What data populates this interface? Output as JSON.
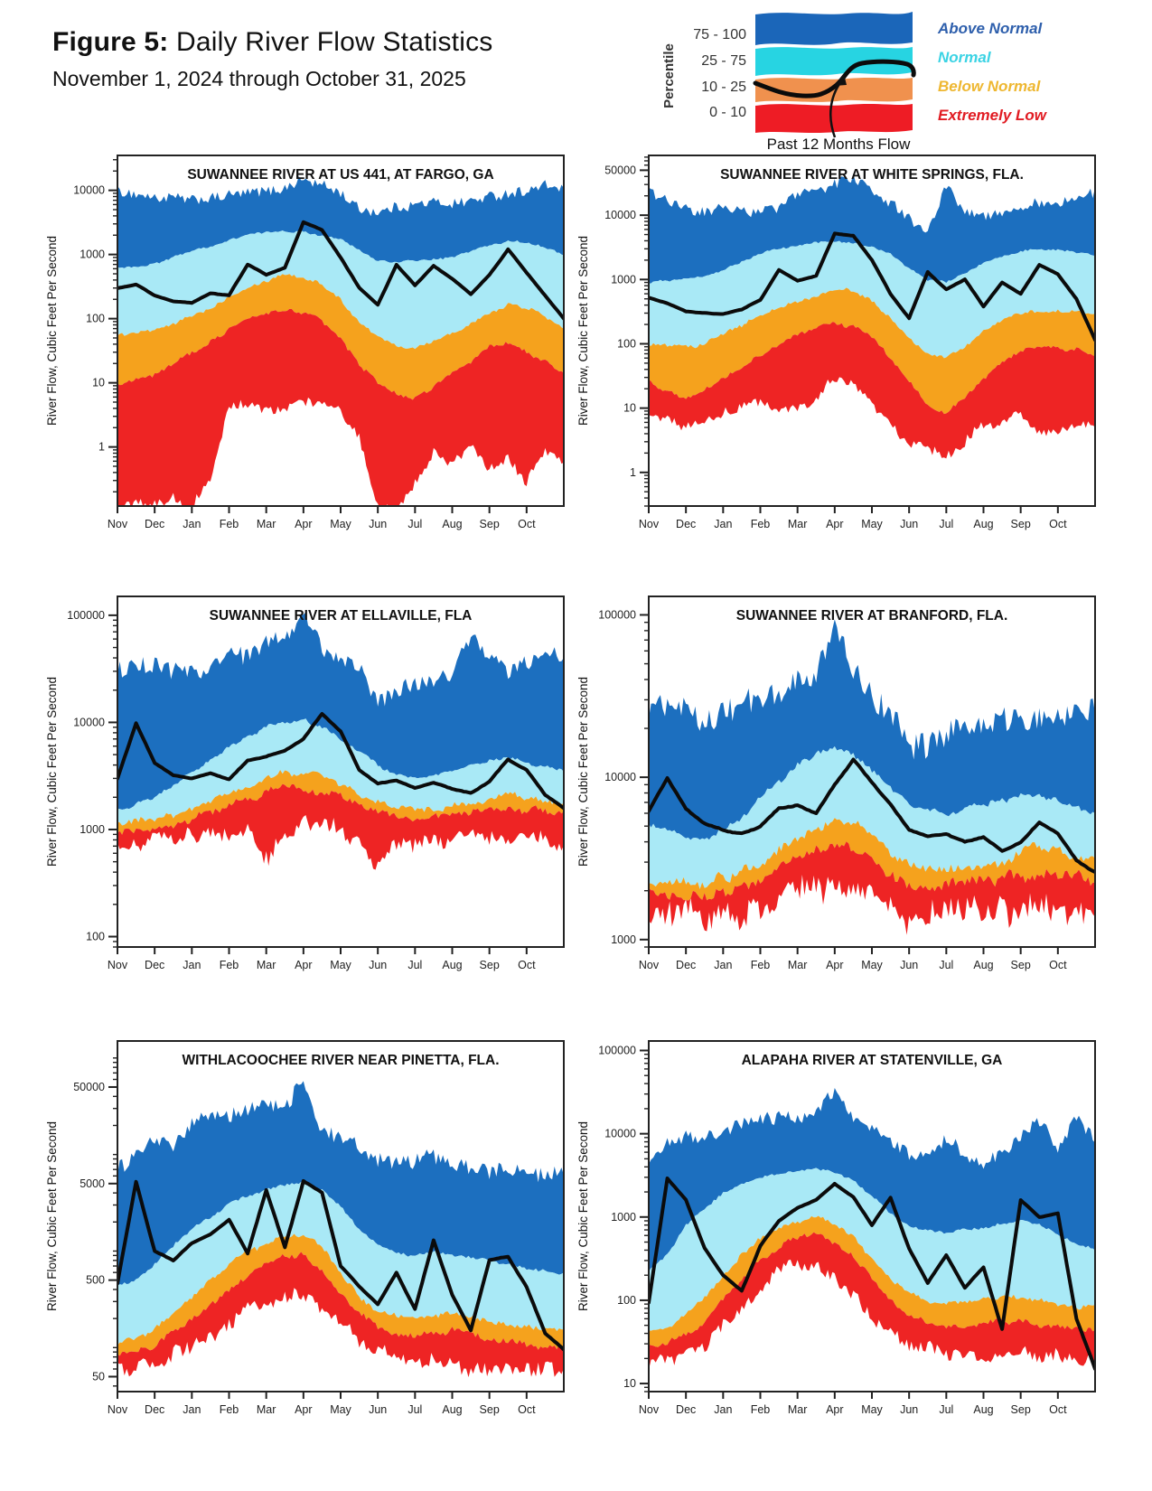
{
  "figure": {
    "title_bold": "Figure 5:",
    "title_rest": " Daily River Flow Statistics",
    "subtitle": "November 1, 2024 through October 31, 2025"
  },
  "legend": {
    "percentile_axis_label": "Percentile",
    "flow_caption": "Past 12 Months Flow",
    "rows": [
      {
        "range": "75 - 100",
        "band_color": "#1b66b9",
        "label": "Above Normal",
        "label_color": "#2e5fac"
      },
      {
        "range": "25 - 75",
        "band_color": "#27d4e2",
        "label": "Normal",
        "label_color": "#3bd3e4"
      },
      {
        "range": "10 - 25",
        "band_color": "#f0914e",
        "label": "Below Normal",
        "label_color": "#eeb731"
      },
      {
        "range": "0 - 10",
        "band_color": "#ee1c25",
        "label": "Extremely Low",
        "label_color": "#e11b22"
      }
    ]
  },
  "months": [
    "Nov",
    "Dec",
    "Jan",
    "Feb",
    "Mar",
    "Apr",
    "May",
    "Jun",
    "Jul",
    "Aug",
    "Sep",
    "Oct"
  ],
  "colors": {
    "above": "#1c6fbf",
    "normal": "#a9e9f6",
    "below": "#f5a21d",
    "extreme": "#ee2424",
    "line": "#0b0b0b"
  },
  "chart_data": [
    {
      "type": "area",
      "id": "fargo",
      "title": "SUWANNEE RIVER AT US 441, AT FARGO, GA",
      "ylabel": "River Flow, Cubic Feet Per Second",
      "xlabel": "",
      "x_samples": "25 points, semi-monthly, Nov 1 2024 - Oct 31 2025",
      "ylim": [
        0.12,
        35000
      ],
      "yticks": [
        1,
        10,
        100,
        1000,
        10000
      ],
      "bands": {
        "max": [
          10000,
          8500,
          7500,
          8000,
          7000,
          7500,
          8500,
          9000,
          9500,
          11000,
          15000,
          12000,
          9000,
          5000,
          4500,
          5500,
          6000,
          6500,
          6000,
          7000,
          8000,
          9000,
          9500,
          12000,
          11000
        ],
        "p75": [
          600,
          650,
          700,
          900,
          1100,
          1300,
          1700,
          2000,
          2200,
          2300,
          2200,
          2000,
          1700,
          1200,
          800,
          750,
          800,
          850,
          900,
          1100,
          1400,
          1600,
          1500,
          1300,
          1000
        ],
        "p25": [
          55,
          60,
          65,
          80,
          110,
          150,
          220,
          300,
          400,
          480,
          450,
          350,
          200,
          90,
          50,
          38,
          36,
          45,
          60,
          80,
          120,
          170,
          150,
          110,
          70
        ],
        "p10": [
          10,
          12,
          14,
          20,
          30,
          45,
          70,
          100,
          130,
          140,
          120,
          90,
          50,
          20,
          10,
          7,
          6,
          9,
          14,
          20,
          35,
          45,
          30,
          22,
          15
        ],
        "min": [
          0.12,
          0.12,
          0.12,
          0.15,
          0.12,
          0.3,
          4,
          4.5,
          3.5,
          4,
          5,
          5,
          4,
          1.5,
          0.12,
          0.12,
          0.3,
          0.8,
          0.5,
          1,
          0.4,
          0.6,
          0.3,
          1,
          0.5
        ]
      },
      "line_past_12_months": [
        300,
        340,
        230,
        185,
        175,
        250,
        230,
        700,
        480,
        620,
        3200,
        2400,
        900,
        300,
        165,
        690,
        330,
        660,
        420,
        240,
        480,
        1200,
        520,
        230,
        100
      ]
    },
    {
      "type": "area",
      "id": "white-springs",
      "title": "SUWANNEE RIVER AT WHITE SPRINGS, FLA.",
      "ylabel": "River Flow, Cubic Feet Per Second",
      "xlabel": "",
      "x_samples": "25 points, semi-monthly, Nov 1 2024 - Oct 31 2025",
      "ylim": [
        0.3,
        85000
      ],
      "yticks": [
        1,
        10,
        100,
        1000,
        10000,
        50000
      ],
      "bands": {
        "max": [
          22000,
          17000,
          13000,
          11000,
          14000,
          12000,
          11000,
          13000,
          20000,
          25000,
          30000,
          40000,
          25000,
          15000,
          9000,
          6000,
          28000,
          12000,
          10000,
          11000,
          13000,
          16000,
          15000,
          18000,
          22000
        ],
        "p75": [
          900,
          950,
          1000,
          1100,
          1400,
          1800,
          2500,
          3000,
          3300,
          3800,
          4000,
          3800,
          3200,
          2500,
          1500,
          1000,
          900,
          1200,
          1800,
          2300,
          2800,
          3000,
          2800,
          2600,
          2400
        ],
        "p25": [
          100,
          95,
          90,
          100,
          140,
          200,
          280,
          350,
          450,
          550,
          700,
          650,
          450,
          250,
          120,
          70,
          60,
          90,
          150,
          220,
          300,
          330,
          330,
          320,
          300
        ],
        "p10": [
          25,
          18,
          14,
          18,
          30,
          45,
          70,
          100,
          130,
          170,
          210,
          190,
          130,
          60,
          25,
          12,
          8,
          15,
          30,
          50,
          80,
          90,
          85,
          80,
          60
        ],
        "min": [
          8,
          6,
          5,
          6,
          9,
          11,
          12,
          11,
          10,
          15,
          30,
          25,
          12,
          6,
          3,
          2.2,
          1.8,
          3,
          5,
          6,
          9,
          4,
          5,
          6,
          5
        ]
      },
      "line_past_12_months": [
        520,
        430,
        320,
        300,
        290,
        340,
        480,
        1400,
        950,
        1150,
        5200,
        4800,
        2000,
        600,
        250,
        1300,
        700,
        1000,
        380,
        900,
        600,
        1700,
        1200,
        500,
        115
      ]
    },
    {
      "type": "area",
      "id": "ellaville",
      "title": "SUWANNEE RIVER AT ELLAVILLE, FLA",
      "ylabel": "River Flow, Cubic Feet Per Second",
      "xlabel": "",
      "x_samples": "25 points, semi-monthly, Nov 1 2024 - Oct 31 2025",
      "ylim": [
        80,
        150000
      ],
      "yticks": [
        100,
        1000,
        10000,
        100000
      ],
      "bands": {
        "max": [
          30000,
          32000,
          35000,
          30000,
          28000,
          32000,
          45000,
          40000,
          55000,
          60000,
          100000,
          50000,
          40000,
          35000,
          16000,
          20000,
          22000,
          25000,
          28000,
          70000,
          40000,
          30000,
          35000,
          45000,
          38000
        ],
        "p75": [
          1500,
          1700,
          2000,
          2600,
          3500,
          4500,
          6000,
          7500,
          9000,
          10000,
          10500,
          9000,
          7000,
          5500,
          4000,
          3200,
          3000,
          3200,
          3500,
          4000,
          4500,
          4800,
          4300,
          3800,
          3400
        ],
        "p25": [
          1150,
          1200,
          1250,
          1350,
          1550,
          1800,
          2200,
          2600,
          3100,
          3400,
          3500,
          3200,
          2700,
          2200,
          1800,
          1600,
          1500,
          1550,
          1650,
          1750,
          1950,
          2100,
          1950,
          1850,
          1750
        ],
        "p10": [
          950,
          980,
          1000,
          1100,
          1250,
          1400,
          1650,
          1950,
          2250,
          2450,
          2500,
          2300,
          2000,
          1700,
          1450,
          1300,
          1250,
          1300,
          1350,
          1400,
          1500,
          1550,
          1500,
          1450,
          1400
        ],
        "min": [
          750,
          780,
          800,
          850,
          880,
          900,
          950,
          900,
          550,
          950,
          1100,
          1050,
          950,
          800,
          420,
          700,
          780,
          800,
          820,
          800,
          780,
          760,
          800,
          820,
          800
        ]
      },
      "line_past_12_months": [
        3000,
        9800,
        4200,
        3200,
        3000,
        3350,
        2950,
        4400,
        4800,
        5400,
        7000,
        12000,
        8300,
        3600,
        2700,
        2900,
        2450,
        2750,
        2400,
        2200,
        2800,
        4500,
        3600,
        2100,
        1600
      ]
    },
    {
      "type": "area",
      "id": "branford",
      "title": "SUWANNEE RIVER AT BRANFORD, FLA.",
      "ylabel": "River Flow, Cubic Feet Per Second",
      "xlabel": "",
      "x_samples": "25 points, semi-monthly, Nov 1 2024 - Oct 31 2025",
      "ylim": [
        900,
        130000
      ],
      "yticks": [
        1000,
        10000,
        100000
      ],
      "bands": {
        "max": [
          26000,
          28000,
          25000,
          22000,
          24000,
          30000,
          32000,
          35000,
          38000,
          45000,
          80000,
          45000,
          32000,
          25000,
          15000,
          16000,
          18000,
          21000,
          19000,
          22000,
          23000,
          22000,
          24000,
          28000,
          26000
        ],
        "p75": [
          5200,
          4800,
          4300,
          4200,
          4800,
          5500,
          7500,
          9500,
          12000,
          14000,
          15000,
          14000,
          11000,
          8500,
          6800,
          6200,
          6000,
          6300,
          6800,
          7200,
          7800,
          7500,
          7000,
          6500,
          6000
        ],
        "p25": [
          2300,
          2250,
          2200,
          2250,
          2400,
          2700,
          3000,
          3500,
          4100,
          4800,
          5500,
          5200,
          4300,
          3400,
          2900,
          2700,
          2600,
          2700,
          2800,
          3000,
          3400,
          3700,
          3500,
          3300,
          3100
        ],
        "p10": [
          1900,
          1850,
          1800,
          1850,
          1950,
          2100,
          2300,
          2700,
          3100,
          3500,
          3800,
          3600,
          3100,
          2500,
          2200,
          2100,
          2100,
          2150,
          2250,
          2350,
          2450,
          2500,
          2450,
          2400,
          2350
        ],
        "min": [
          1450,
          1400,
          1380,
          1400,
          1420,
          1450,
          1500,
          1700,
          2000,
          2100,
          2150,
          2050,
          1900,
          1500,
          1300,
          1400,
          1450,
          1500,
          1520,
          1530,
          1520,
          1500,
          1520,
          1540,
          1520
        ]
      },
      "line_past_12_months": [
        6200,
        9800,
        6400,
        5200,
        4700,
        4500,
        5000,
        6400,
        6700,
        6000,
        9000,
        12800,
        9300,
        6800,
        4700,
        4300,
        4500,
        4000,
        4300,
        3500,
        4000,
        5300,
        4500,
        3100,
        2600
      ]
    },
    {
      "type": "area",
      "id": "pinetta",
      "title": "WITHLACOOCHEE RIVER NEAR PINETTA, FLA.",
      "ylabel": "River Flow, Cubic Feet Per Second",
      "xlabel": "",
      "x_samples": "25 points, semi-monthly, Nov 1 2024 - Oct 31 2025",
      "ylim": [
        35,
        150000
      ],
      "yticks": [
        50,
        500,
        5000,
        50000
      ],
      "bands": {
        "max": [
          7500,
          9000,
          15000,
          12000,
          20000,
          28000,
          25000,
          30000,
          35000,
          28000,
          60000,
          18000,
          15000,
          12000,
          9000,
          8000,
          8500,
          9500,
          8000,
          7500,
          6500,
          7500,
          6000,
          6500,
          7000
        ],
        "p75": [
          430,
          500,
          750,
          1100,
          1700,
          2300,
          3000,
          3800,
          4300,
          4700,
          5000,
          4200,
          2800,
          1700,
          1150,
          950,
          900,
          950,
          900,
          850,
          800,
          750,
          680,
          620,
          580
        ],
        "p25": [
          115,
          125,
          160,
          220,
          320,
          480,
          700,
          1000,
          1250,
          1400,
          1450,
          1100,
          600,
          330,
          240,
          210,
          200,
          210,
          230,
          210,
          190,
          170,
          160,
          150,
          145
        ],
        "p10": [
          85,
          90,
          110,
          140,
          190,
          280,
          420,
          600,
          780,
          880,
          900,
          650,
          380,
          220,
          160,
          140,
          130,
          140,
          150,
          140,
          125,
          115,
          108,
          102,
          100
        ],
        "min": [
          60,
          62,
          70,
          82,
          100,
          130,
          180,
          250,
          310,
          340,
          330,
          250,
          160,
          110,
          88,
          78,
          72,
          70,
          66,
          60,
          56,
          54,
          56,
          58,
          60
        ]
      },
      "line_past_12_months": [
        470,
        5200,
        1000,
        800,
        1200,
        1500,
        2100,
        950,
        4300,
        1100,
        5300,
        4000,
        700,
        430,
        280,
        600,
        250,
        1300,
        350,
        150,
        800,
        880,
        420,
        140,
        95
      ]
    },
    {
      "type": "area",
      "id": "statenville",
      "title": "ALAPAHA RIVER AT STATENVILLE, GA",
      "ylabel": "River Flow, Cubic Feet Per Second",
      "xlabel": "",
      "x_samples": "25 points, semi-monthly, Nov 1 2024 - Oct 31 2025",
      "ylim": [
        8,
        130000
      ],
      "yticks": [
        10,
        100,
        1000,
        10000,
        100000
      ],
      "bands": {
        "max": [
          4500,
          8000,
          9500,
          9000,
          11000,
          13000,
          14000,
          16000,
          15000,
          18000,
          35000,
          14000,
          11000,
          9000,
          5500,
          5000,
          8500,
          6000,
          4500,
          5500,
          9000,
          14000,
          7000,
          15000,
          9000
        ],
        "p75": [
          230,
          350,
          800,
          1200,
          1900,
          2500,
          3000,
          3300,
          3600,
          3800,
          3300,
          2800,
          1800,
          1100,
          800,
          700,
          650,
          700,
          750,
          800,
          900,
          800,
          600,
          500,
          400
        ],
        "p25": [
          40,
          45,
          65,
          110,
          200,
          350,
          550,
          750,
          900,
          1000,
          850,
          600,
          320,
          170,
          120,
          100,
          90,
          95,
          100,
          105,
          110,
          100,
          90,
          85,
          80
        ],
        "p10": [
          27,
          30,
          38,
          55,
          100,
          180,
          300,
          450,
          550,
          600,
          500,
          350,
          180,
          100,
          70,
          55,
          48,
          50,
          52,
          55,
          58,
          52,
          48,
          46,
          45
        ],
        "min": [
          17,
          19,
          22,
          27,
          45,
          80,
          150,
          220,
          280,
          270,
          200,
          120,
          60,
          38,
          30,
          26,
          24,
          22,
          19,
          20,
          24,
          22,
          20,
          21,
          20
        ]
      },
      "line_past_12_months": [
        95,
        2900,
        1600,
        420,
        200,
        130,
        450,
        900,
        1300,
        1600,
        2500,
        1750,
        800,
        1700,
        420,
        160,
        350,
        140,
        250,
        45,
        1600,
        1000,
        1100,
        60,
        15
      ]
    }
  ]
}
